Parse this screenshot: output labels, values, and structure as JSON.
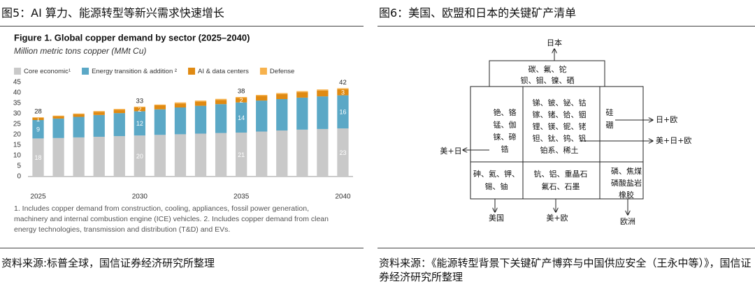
{
  "left": {
    "caption": "图5：AI 算力、能源转型等新兴需求快速增长",
    "footnote": "1. Includes copper demand from construction, cooling, appliances, fossil power generation, machinery and internal combustion engine (ICE) vehicles. 2. Includes copper demand from clean energy technologies, transmission and distribution (T&D) and EVs.",
    "source": "资料来源:标普全球，国信证券经济研究所整理"
  },
  "right": {
    "caption": "图6：美国、欧盟和日本的关键矿产清单",
    "source": "资料来源：《能源转型背景下关键矿产博弈与中国供应安全（王永中等）》，国信证券经济研究所整理"
  },
  "chart_data": {
    "type": "stacked_bar",
    "title": "Figure 1. Global copper demand by sector (2025–2040)",
    "subtitle": "Million metric tons copper (MMt Cu)",
    "categories": [
      "2025",
      null,
      null,
      null,
      null,
      "2030",
      null,
      null,
      null,
      null,
      "2035",
      null,
      null,
      null,
      null,
      "2040"
    ],
    "series": [
      {
        "name": "Core economic¹",
        "color": "#c9c9c9",
        "values": [
          18.2,
          18.4,
          18.7,
          19.0,
          19.3,
          19.6,
          19.9,
          20.2,
          20.5,
          20.8,
          21.0,
          21.5,
          22.0,
          22.4,
          22.7,
          23.0
        ],
        "value_labels": [
          "18",
          null,
          null,
          null,
          null,
          "20",
          null,
          null,
          null,
          null,
          "21",
          null,
          null,
          null,
          null,
          "23"
        ]
      },
      {
        "name": "Energy transition & addition ²",
        "color": "#5ba8c6",
        "values": [
          8.8,
          9.3,
          9.8,
          10.4,
          11.0,
          11.6,
          12.2,
          12.8,
          13.3,
          13.8,
          14.4,
          14.8,
          15.0,
          15.3,
          15.6,
          15.8
        ],
        "value_labels": [
          "9",
          null,
          null,
          null,
          null,
          "12",
          null,
          null,
          null,
          null,
          "14",
          null,
          null,
          null,
          null,
          "16"
        ]
      },
      {
        "name": "AI & data centers",
        "color": "#e08a12",
        "values": [
          1.0,
          1.1,
          1.3,
          1.5,
          1.6,
          1.8,
          1.9,
          1.9,
          2.0,
          2.0,
          2.1,
          2.2,
          2.4,
          2.6,
          2.8,
          2.9
        ],
        "value_labels": [
          "1",
          null,
          null,
          null,
          null,
          "2",
          null,
          null,
          null,
          null,
          "2",
          null,
          null,
          null,
          null,
          "3"
        ]
      },
      {
        "name": "Defense",
        "color": "#f7b24d",
        "values": [
          0.3,
          0.3,
          0.3,
          0.4,
          0.4,
          0.4,
          0.4,
          0.5,
          0.5,
          0.5,
          0.5,
          0.5,
          0.5,
          0.5,
          0.5,
          0.5
        ]
      }
    ],
    "totals": [
      28,
      null,
      null,
      null,
      null,
      33,
      null,
      null,
      null,
      null,
      38,
      null,
      null,
      null,
      null,
      42
    ],
    "ylim": [
      0,
      45
    ],
    "yticks": [
      0,
      5,
      10,
      15,
      20,
      25,
      30,
      35,
      40,
      45
    ],
    "grid": false
  },
  "diagram": {
    "top": "日本",
    "japan_box": [
      "碳、氟、铊",
      "钡、钼、镍、硒"
    ],
    "left_col": [
      "铯、铬",
      "锰、伽",
      "铼、碲",
      "锆"
    ],
    "center": [
      "锑、铍、铋、钴",
      "镓、锗、铪、铟",
      "锂、镁、铌、铑",
      "钽、钛、钨、钒",
      "铂系、稀土"
    ],
    "right_col": [
      "硅",
      "硼"
    ],
    "bottom_left": [
      "砷、氦、钾、",
      "锡、铀"
    ],
    "bottom_center": [
      "钪、铝、重晶石",
      "氟石、石墨"
    ],
    "bottom_right": [
      "磷、焦煤",
      "磷酸盐岩",
      "橡胶"
    ],
    "arrows": [
      "美+日",
      "日+欧",
      "美+日+欧",
      "美国",
      "美+欧",
      "欧洲"
    ]
  }
}
